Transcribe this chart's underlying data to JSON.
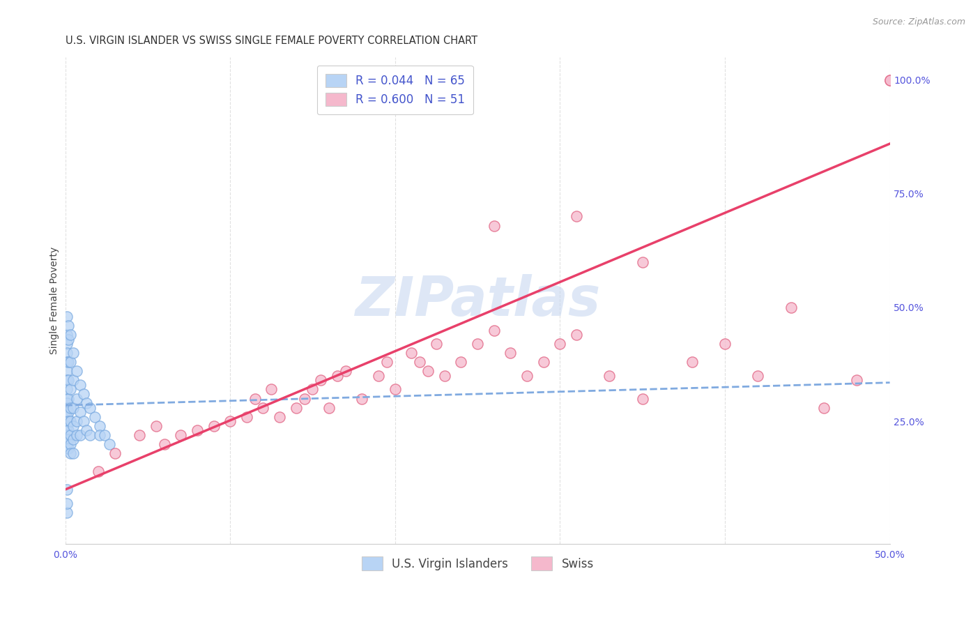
{
  "title": "U.S. VIRGIN ISLANDER VS SWISS SINGLE FEMALE POVERTY CORRELATION CHART",
  "source": "Source: ZipAtlas.com",
  "ylabel": "Single Female Poverty",
  "xlim": [
    0,
    0.5
  ],
  "ylim": [
    -0.02,
    1.05
  ],
  "color_vi": "#b8d4f5",
  "color_vi_edge": "#7aaae0",
  "color_swiss": "#f5b8cc",
  "color_swiss_edge": "#e06080",
  "color_vi_line": "#80aae0",
  "color_swiss_line": "#e8406a",
  "background_color": "#ffffff",
  "grid_color": "#e0e0e0",
  "title_fontsize": 10.5,
  "axis_fontsize": 10,
  "tick_fontsize": 10,
  "legend_fontsize": 12,
  "watermark_color": "#c8d8f0",
  "vi_line_x": [
    0.0,
    0.5
  ],
  "vi_line_y": [
    0.285,
    0.335
  ],
  "swiss_line_x": [
    0.0,
    0.5
  ],
  "swiss_line_y": [
    0.1,
    0.86
  ],
  "scatter_vi_x": [
    0.001,
    0.001,
    0.001,
    0.001,
    0.001,
    0.001,
    0.001,
    0.001,
    0.001,
    0.001,
    0.001,
    0.001,
    0.001,
    0.001,
    0.001,
    0.001,
    0.001,
    0.001,
    0.001,
    0.001,
    0.002,
    0.002,
    0.002,
    0.002,
    0.002,
    0.002,
    0.002,
    0.002,
    0.002,
    0.002,
    0.003,
    0.003,
    0.003,
    0.003,
    0.003,
    0.003,
    0.003,
    0.003,
    0.005,
    0.005,
    0.005,
    0.005,
    0.005,
    0.005,
    0.007,
    0.007,
    0.007,
    0.007,
    0.009,
    0.009,
    0.009,
    0.011,
    0.011,
    0.013,
    0.013,
    0.015,
    0.015,
    0.018,
    0.021,
    0.021,
    0.024,
    0.027,
    0.001,
    0.001,
    0.001
  ],
  "scatter_vi_y": [
    0.48,
    0.44,
    0.42,
    0.4,
    0.38,
    0.36,
    0.34,
    0.32,
    0.3,
    0.29,
    0.28,
    0.27,
    0.26,
    0.25,
    0.24,
    0.23,
    0.22,
    0.21,
    0.2,
    0.19,
    0.46,
    0.43,
    0.38,
    0.34,
    0.3,
    0.27,
    0.25,
    0.23,
    0.21,
    0.19,
    0.44,
    0.38,
    0.32,
    0.28,
    0.25,
    0.22,
    0.2,
    0.18,
    0.4,
    0.34,
    0.28,
    0.24,
    0.21,
    0.18,
    0.36,
    0.3,
    0.25,
    0.22,
    0.33,
    0.27,
    0.22,
    0.31,
    0.25,
    0.29,
    0.23,
    0.28,
    0.22,
    0.26,
    0.24,
    0.22,
    0.22,
    0.2,
    0.05,
    0.07,
    0.1
  ],
  "scatter_swiss_x": [
    0.02,
    0.03,
    0.045,
    0.055,
    0.06,
    0.07,
    0.08,
    0.09,
    0.1,
    0.11,
    0.115,
    0.12,
    0.125,
    0.13,
    0.14,
    0.145,
    0.15,
    0.155,
    0.16,
    0.165,
    0.17,
    0.18,
    0.19,
    0.195,
    0.2,
    0.21,
    0.215,
    0.22,
    0.225,
    0.23,
    0.24,
    0.25,
    0.26,
    0.27,
    0.28,
    0.29,
    0.3,
    0.31,
    0.33,
    0.35,
    0.38,
    0.4,
    0.42,
    0.44,
    0.46,
    0.48,
    0.5,
    0.5,
    0.26,
    0.31,
    0.35
  ],
  "scatter_swiss_y": [
    0.14,
    0.18,
    0.22,
    0.24,
    0.2,
    0.22,
    0.23,
    0.24,
    0.25,
    0.26,
    0.3,
    0.28,
    0.32,
    0.26,
    0.28,
    0.3,
    0.32,
    0.34,
    0.28,
    0.35,
    0.36,
    0.3,
    0.35,
    0.38,
    0.32,
    0.4,
    0.38,
    0.36,
    0.42,
    0.35,
    0.38,
    0.42,
    0.45,
    0.4,
    0.35,
    0.38,
    0.42,
    0.44,
    0.35,
    0.3,
    0.38,
    0.42,
    0.35,
    0.5,
    0.28,
    0.34,
    1.0,
    1.0,
    0.68,
    0.7,
    0.6
  ]
}
